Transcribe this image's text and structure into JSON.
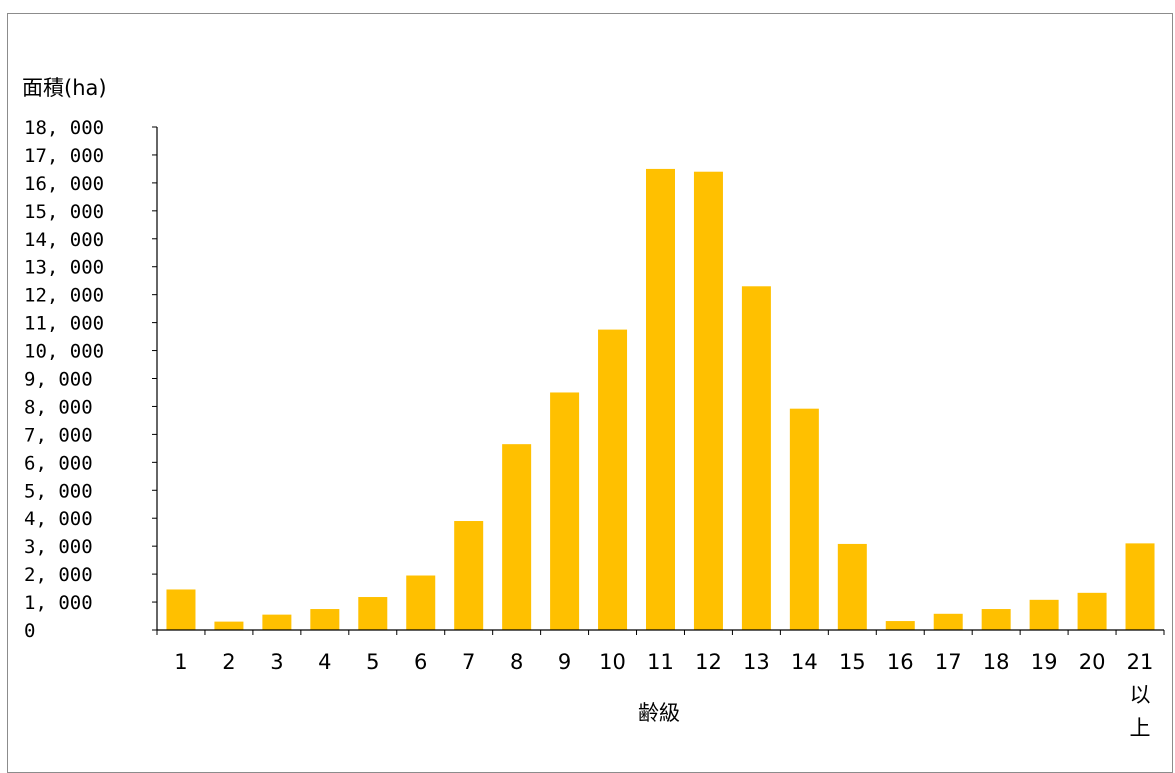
{
  "chart_data": {
    "type": "bar",
    "title": "",
    "ylabel": "面積(ha)",
    "xlabel": "齢級",
    "categories": [
      "1",
      "2",
      "3",
      "4",
      "5",
      "6",
      "7",
      "8",
      "9",
      "10",
      "11",
      "12",
      "13",
      "14",
      "15",
      "16",
      "17",
      "18",
      "19",
      "20",
      "21\n以\n上"
    ],
    "values": [
      1450,
      300,
      550,
      750,
      1180,
      1950,
      3900,
      6650,
      8500,
      10750,
      16500,
      16400,
      12300,
      7920,
      3080,
      320,
      580,
      750,
      1080,
      1330,
      3100
    ],
    "ylim": [
      0,
      18000
    ],
    "ytick_step": 1000,
    "ytick_labels": [
      "0",
      "1, 000",
      "2, 000",
      "3, 000",
      "4, 000",
      "5, 000",
      "6, 000",
      "7, 000",
      "8, 000",
      "9, 000",
      "10, 000",
      "11, 000",
      "12, 000",
      "13, 000",
      "14, 000",
      "15, 000",
      "16, 000",
      "17, 000",
      "18, 000"
    ],
    "grid": false,
    "legend": "none",
    "bar_color": "#ffc000"
  }
}
